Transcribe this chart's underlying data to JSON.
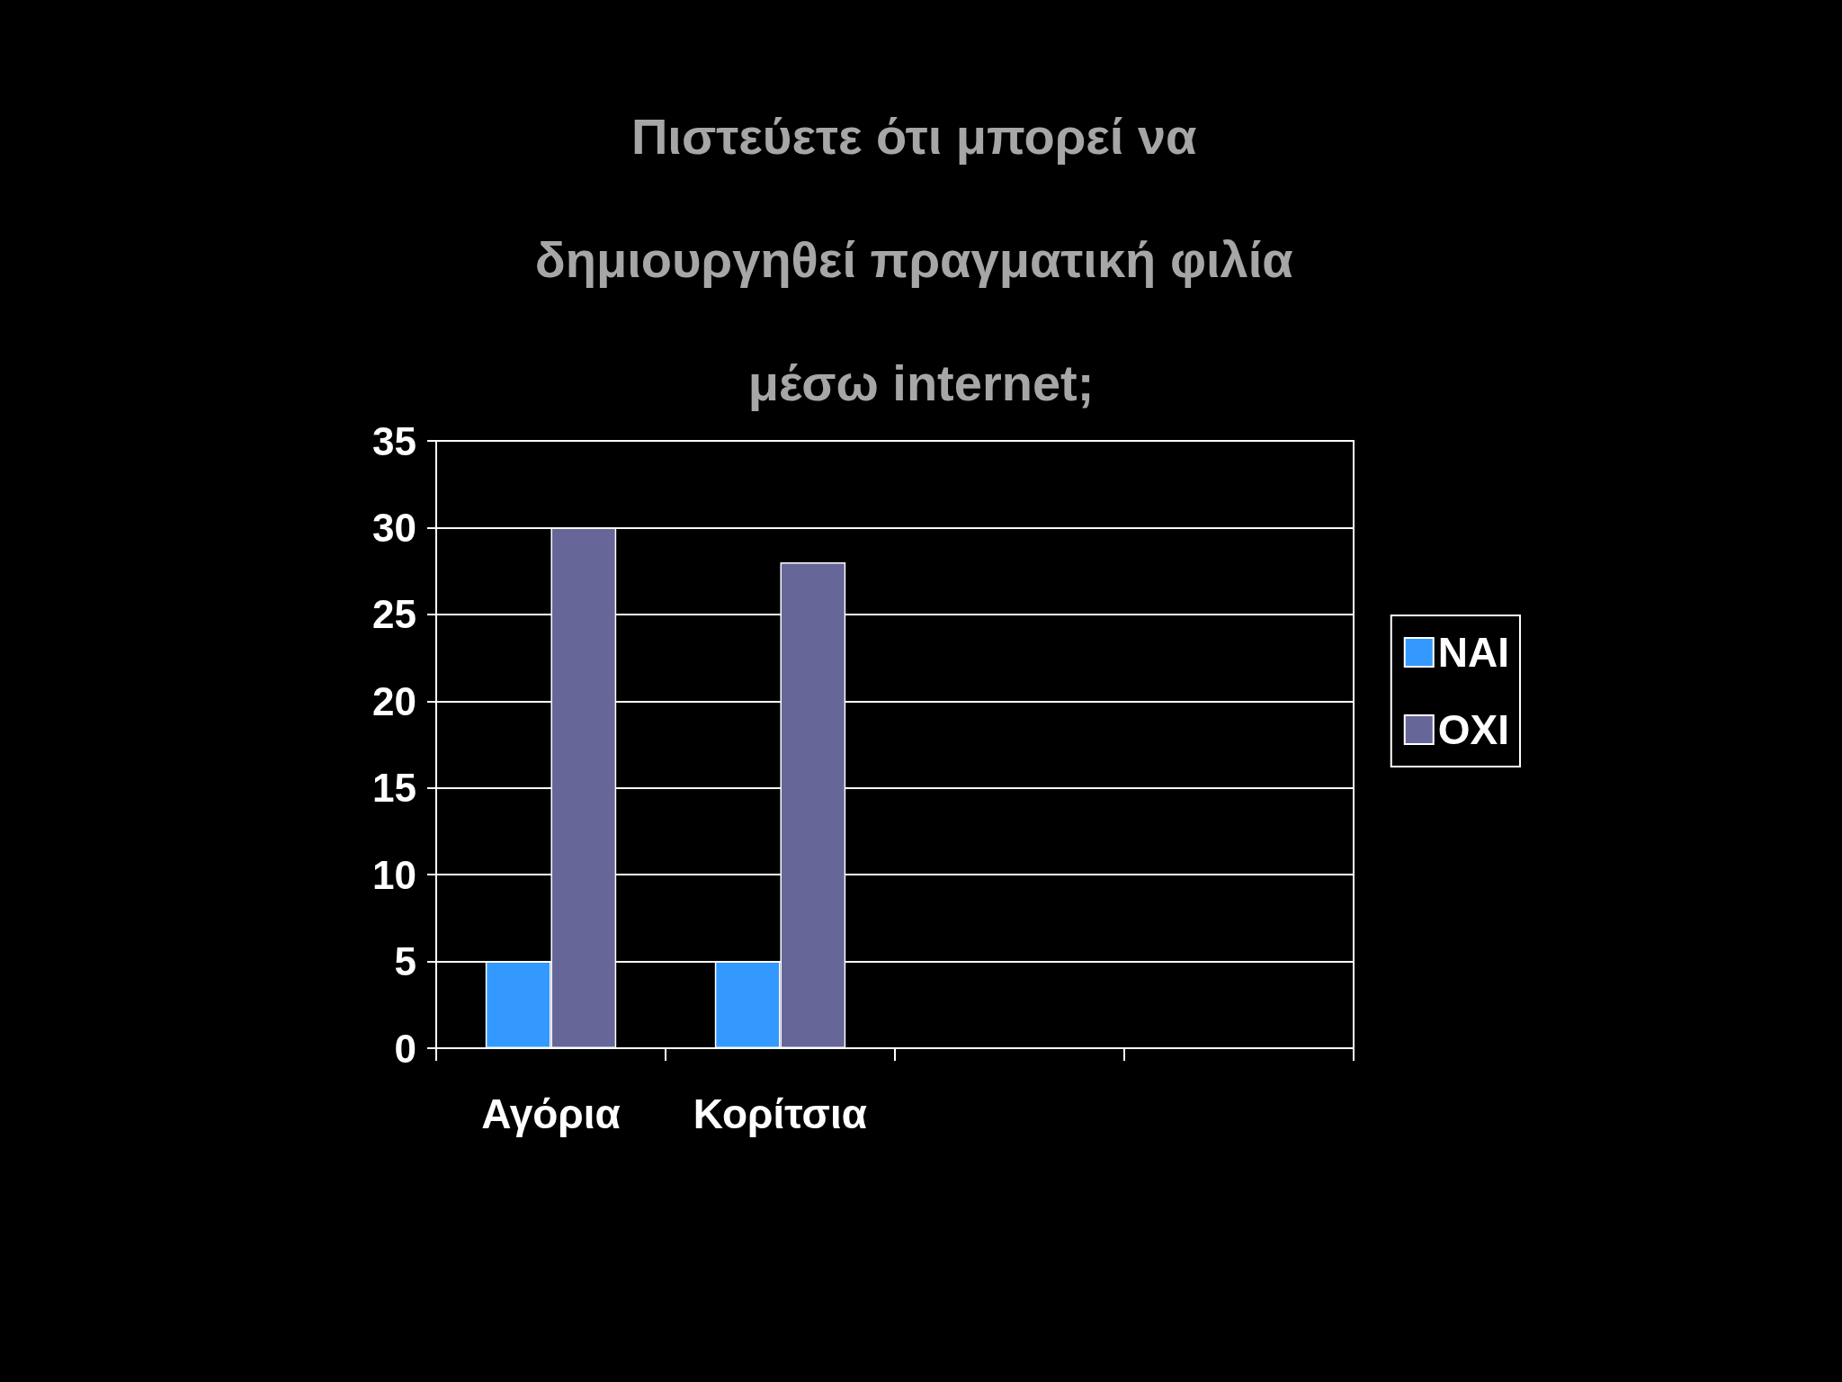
{
  "chart_data": {
    "type": "bar",
    "title": "Πιστεύετε ότι μπορεί να δημιουργηθεί πραγματική φιλία μέσω internet;",
    "categories": [
      "Αγόρια",
      "Κορίτσια",
      null,
      null
    ],
    "series": [
      {
        "name": "NAI",
        "color": "#3399ff",
        "values": [
          5,
          5,
          null,
          null
        ]
      },
      {
        "name": "OXI",
        "color": "#666699",
        "values": [
          30,
          28,
          null,
          null
        ]
      }
    ],
    "ylim": [
      0,
      35
    ],
    "yticks": [
      0,
      5,
      10,
      15,
      20,
      25,
      30,
      35
    ],
    "grid": "y",
    "legend": "right"
  }
}
